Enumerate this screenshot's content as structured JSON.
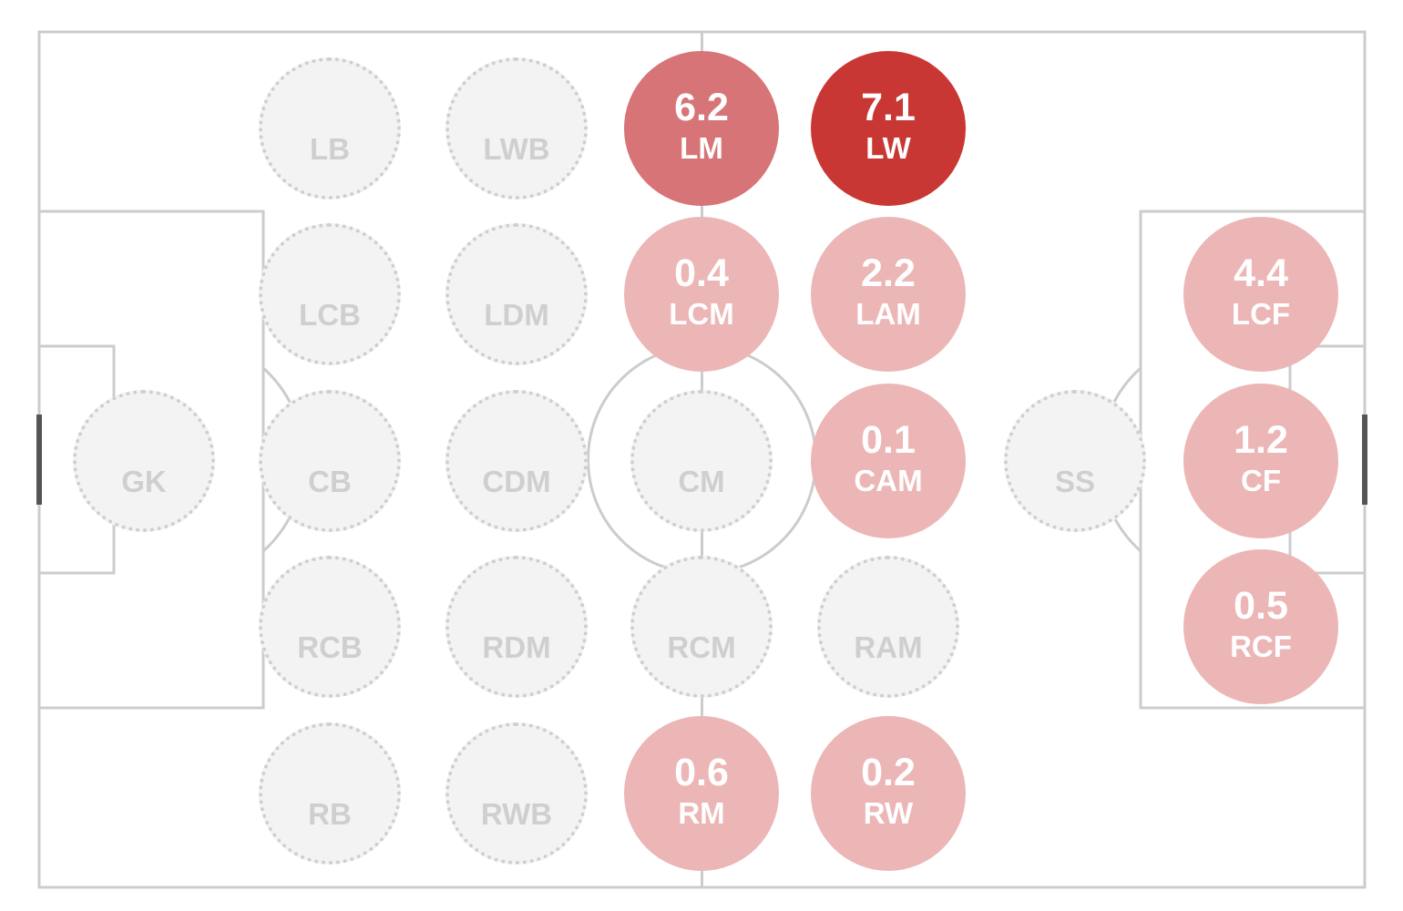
{
  "colors": {
    "line": "#cccccc",
    "goal": "#555555",
    "empty_fill": "#f3f3f3",
    "empty_border": "#cfcfcf",
    "empty_text": "#cfcfcf",
    "low_fill": "#ecb6b6",
    "mid_fill": "#d77477",
    "high_fill": "#c93734"
  },
  "positions": [
    {
      "label": "GK",
      "value": ""
    },
    {
      "label": "LB",
      "value": ""
    },
    {
      "label": "LCB",
      "value": ""
    },
    {
      "label": "CB",
      "value": ""
    },
    {
      "label": "RCB",
      "value": ""
    },
    {
      "label": "RB",
      "value": ""
    },
    {
      "label": "LWB",
      "value": ""
    },
    {
      "label": "LDM",
      "value": ""
    },
    {
      "label": "CDM",
      "value": ""
    },
    {
      "label": "RDM",
      "value": ""
    },
    {
      "label": "RWB",
      "value": ""
    },
    {
      "label": "LM",
      "value": "6.2"
    },
    {
      "label": "LCM",
      "value": "0.4"
    },
    {
      "label": "CM",
      "value": ""
    },
    {
      "label": "RCM",
      "value": ""
    },
    {
      "label": "RM",
      "value": "0.6"
    },
    {
      "label": "LW",
      "value": "7.1"
    },
    {
      "label": "LAM",
      "value": "2.2"
    },
    {
      "label": "CAM",
      "value": "0.1"
    },
    {
      "label": "RAM",
      "value": ""
    },
    {
      "label": "RW",
      "value": "0.2"
    },
    {
      "label": "SS",
      "value": ""
    },
    {
      "label": "LCF",
      "value": "4.4"
    },
    {
      "label": "CF",
      "value": "1.2"
    },
    {
      "label": "RCF",
      "value": "0.5"
    }
  ]
}
